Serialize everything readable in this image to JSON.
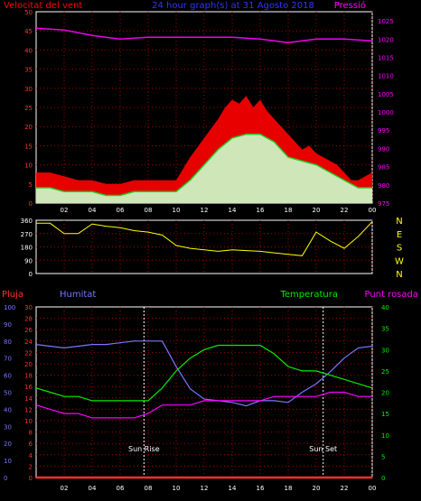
{
  "title": "24 hour graph(s) at 31 Agosto 2018",
  "colors": {
    "background": "#000000",
    "frame": "#ffffff",
    "grid_red": "#aa0000",
    "wind": "#ff0000",
    "gust": "#ff0000",
    "avg": "#22cc22",
    "light": "#ccffcc",
    "pressure": "#ee00ee",
    "direction": "#ffff00",
    "humidity": "#7777ff",
    "temperature": "#00ee00",
    "dew": "#ff00ff",
    "rain": "#ff3030"
  },
  "chart_data": [
    {
      "type": "line",
      "name": "wind-pressure",
      "title": "24 hour graph(s) at 31 Agosto 2018",
      "left_label": "Velocitat del vent",
      "right_label": "Pressió",
      "xticks": [
        "02",
        "04",
        "06",
        "08",
        "10",
        "12",
        "14",
        "16",
        "18",
        "20",
        "22",
        "00"
      ],
      "x_hours": [
        2,
        4,
        6,
        8,
        10,
        12,
        14,
        16,
        18,
        20,
        22,
        24
      ],
      "x_range": [
        0,
        24
      ],
      "ylim_left": [
        0,
        50
      ],
      "yticks_left": [
        0,
        5,
        10,
        15,
        20,
        25,
        30,
        35,
        40,
        45,
        50
      ],
      "ylim_right": [
        975,
        1027.5
      ],
      "yticks_right": [
        975,
        980,
        985,
        990,
        995,
        1000,
        1005,
        1010,
        1015,
        1020,
        1025
      ],
      "wind_gust": {
        "x": [
          0,
          1,
          2,
          3,
          4,
          5,
          6,
          7,
          8,
          9,
          10,
          11,
          12,
          13,
          13.5,
          14,
          14.5,
          15,
          15.5,
          16,
          16.5,
          17,
          17.5,
          18,
          18.5,
          19,
          19.5,
          20,
          20.5,
          21,
          21.5,
          22,
          22.5,
          23,
          23.5,
          24
        ],
        "y": [
          8,
          8,
          7,
          6,
          6,
          5,
          5,
          6,
          6,
          6,
          6,
          12,
          17,
          22,
          25,
          27,
          26,
          28,
          25,
          27,
          24,
          22,
          20,
          18,
          16,
          14,
          15,
          13,
          12,
          11,
          10,
          8,
          6,
          6,
          7,
          8
        ]
      },
      "wind_avg": {
        "x": [
          0,
          1,
          2,
          3,
          4,
          5,
          6,
          7,
          8,
          9,
          10,
          11,
          12,
          13,
          14,
          15,
          16,
          17,
          18,
          19,
          20,
          21,
          22,
          23,
          24
        ],
        "y": [
          4,
          4,
          3,
          3,
          3,
          2,
          2,
          3,
          3,
          3,
          3,
          6,
          10,
          14,
          17,
          18,
          18,
          16,
          12,
          11,
          10,
          8,
          6,
          4,
          4
        ]
      },
      "pressure": {
        "x": [
          0,
          2,
          4,
          6,
          8,
          10,
          12,
          14,
          16,
          18,
          20,
          22,
          24
        ],
        "y": [
          1023,
          1022.5,
          1021,
          1020,
          1020.5,
          1020.5,
          1020.5,
          1020.5,
          1020,
          1019,
          1020,
          1020,
          1019.5
        ]
      }
    },
    {
      "type": "line",
      "name": "wind-direction",
      "ylim": [
        0,
        360
      ],
      "yticks": [
        0,
        90,
        180,
        270,
        360
      ],
      "compass_labels": [
        "N",
        "W",
        "S",
        "E",
        "N"
      ],
      "direction": {
        "x": [
          0,
          1,
          2,
          3,
          4,
          5,
          6,
          7,
          8,
          9,
          10,
          11,
          12,
          13,
          14,
          15,
          16,
          17,
          18,
          19,
          20,
          21,
          22,
          23,
          24
        ],
        "y": [
          340,
          340,
          270,
          270,
          335,
          320,
          310,
          290,
          280,
          260,
          190,
          170,
          160,
          150,
          160,
          155,
          150,
          140,
          130,
          120,
          280,
          220,
          170,
          250,
          350
        ]
      }
    },
    {
      "type": "line",
      "name": "humidity-temperature",
      "rain_label": "Pluja",
      "humidity_label": "Humitat",
      "temperature_label": "Temperatura",
      "dew_label": "Punt rosada",
      "ylim_rain": [
        0,
        30
      ],
      "yticks_rain": [
        0,
        2,
        4,
        6,
        8,
        10,
        12,
        14,
        16,
        18,
        20,
        22,
        24,
        26,
        28,
        30
      ],
      "ylim_humidity": [
        0,
        100
      ],
      "yticks_humidity": [
        0,
        10,
        20,
        30,
        40,
        50,
        60,
        70,
        80,
        90,
        100
      ],
      "ylim_temperature": [
        0,
        40
      ],
      "yticks_temperature": [
        0,
        5,
        10,
        15,
        20,
        25,
        30,
        35,
        40
      ],
      "sunrise_label": "Sun Rise",
      "sunset_label": "Sun Set",
      "sunrise_hour": 7.7,
      "sunset_hour": 20.5,
      "humidity": {
        "x": [
          0,
          1,
          2,
          3,
          4,
          5,
          6,
          7,
          8,
          9,
          10,
          11,
          12,
          13,
          14,
          15,
          16,
          17,
          18,
          19,
          20,
          21,
          22,
          23,
          24
        ],
        "y": [
          78,
          77,
          76,
          77,
          78,
          78,
          79,
          80,
          80,
          80,
          65,
          52,
          46,
          45,
          44,
          42,
          45,
          45,
          44,
          50,
          55,
          62,
          70,
          76,
          77
        ]
      },
      "temperature": {
        "x": [
          0,
          1,
          2,
          3,
          4,
          5,
          6,
          7,
          8,
          9,
          10,
          11,
          12,
          13,
          14,
          15,
          16,
          17,
          18,
          19,
          20,
          21,
          22,
          23,
          24
        ],
        "y": [
          21,
          20,
          19,
          19,
          18,
          18,
          18,
          18,
          18,
          21,
          25,
          28,
          30,
          31,
          31,
          31,
          31,
          29,
          26,
          25,
          25,
          24,
          23,
          22,
          21
        ]
      },
      "dew": {
        "x": [
          0,
          1,
          2,
          3,
          4,
          5,
          6,
          7,
          8,
          9,
          10,
          11,
          12,
          13,
          14,
          15,
          16,
          17,
          18,
          19,
          20,
          21,
          22,
          23,
          24
        ],
        "y": [
          17,
          16,
          15,
          15,
          14,
          14,
          14,
          14,
          15,
          17,
          17,
          17,
          18,
          18,
          18,
          18,
          18,
          19,
          19,
          19,
          19,
          20,
          20,
          19,
          19
        ]
      },
      "rain": {
        "x": [
          0,
          24
        ],
        "y": [
          0,
          0
        ]
      }
    }
  ]
}
